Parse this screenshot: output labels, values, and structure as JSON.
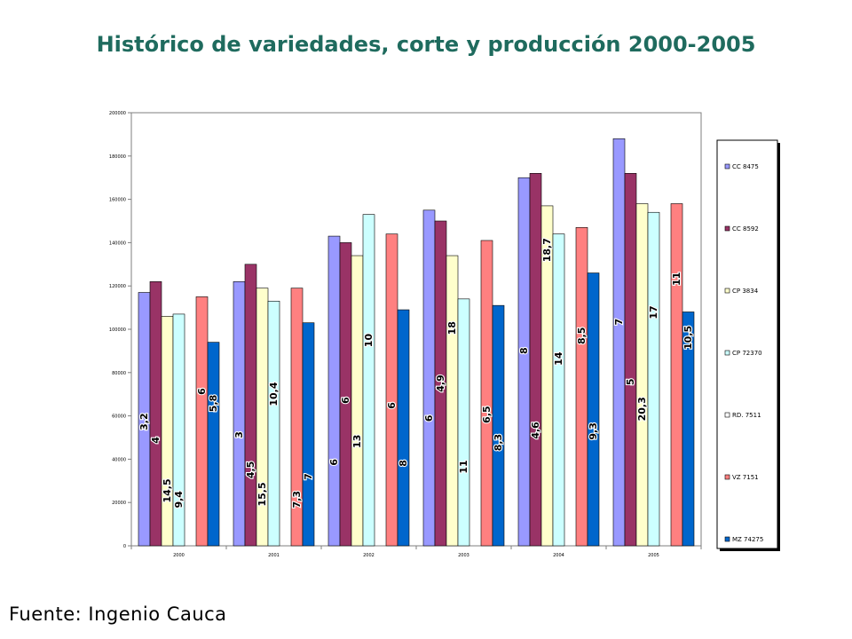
{
  "page": {
    "title": "Histórico de variedades, corte y producción 2000-2005",
    "source": "Fuente: Ingenio Cauca"
  },
  "chart_data": {
    "type": "bar",
    "title": "",
    "xlabel": "",
    "ylabel": "",
    "ylim": [
      0,
      200000
    ],
    "yticks": [
      0,
      20000,
      40000,
      60000,
      80000,
      100000,
      120000,
      140000,
      160000,
      180000,
      200000
    ],
    "ytick_labels": [
      "0",
      "20000",
      "40000",
      "60000",
      "80000",
      "100000",
      "120000",
      "140000",
      "160000",
      "180000",
      "200000"
    ],
    "grid": false,
    "legend_position": "right",
    "categories": [
      "2000",
      "2001",
      "2002",
      "2003",
      "2004",
      "2005"
    ],
    "series": [
      {
        "name": "CC 8475",
        "color": "#9999ff",
        "values": [
          117000,
          122000,
          143000,
          155000,
          170000,
          188000
        ],
        "labels": [
          "3,2",
          "3",
          "6",
          "6",
          "8",
          "7"
        ],
        "label_frac": [
          0.49,
          0.42,
          0.27,
          0.38,
          0.53,
          0.55
        ]
      },
      {
        "name": "CC 8592",
        "color": "#993366",
        "values": [
          122000,
          130000,
          140000,
          150000,
          172000,
          172000
        ],
        "labels": [
          "4",
          "4,5",
          "6",
          "4,9",
          "4,6",
          "5"
        ],
        "label_frac": [
          0.4,
          0.27,
          0.48,
          0.5,
          0.31,
          0.44
        ]
      },
      {
        "name": "CP 3834",
        "color": "#ffffcc",
        "values": [
          106000,
          119000,
          134000,
          134000,
          157000,
          158000
        ],
        "labels": [
          "14,5",
          "15,5",
          "13",
          "18",
          "18,7",
          "20,3"
        ],
        "label_frac": [
          0.24,
          0.2,
          0.36,
          0.75,
          0.87,
          0.4
        ]
      },
      {
        "name": "CP 72370",
        "color": "#ccffff",
        "values": [
          107000,
          113000,
          153000,
          114000,
          144000,
          154000
        ],
        "labels": [
          "9,4",
          "10,4",
          "10",
          "11",
          "14",
          "17"
        ],
        "label_frac": [
          0.2,
          0.62,
          0.62,
          0.32,
          0.6,
          0.7
        ]
      },
      {
        "name": "RD. 7511",
        "color": "#ffffff",
        "values": [
          0,
          0,
          0,
          0,
          0,
          0
        ],
        "labels": [],
        "label_frac": []
      },
      {
        "name": "VZ 7151",
        "color": "#ff8080",
        "values": [
          115000,
          119000,
          144000,
          141000,
          147000,
          158000
        ],
        "labels": [
          "6",
          "7,3",
          "6",
          "6,5",
          "8,5",
          "11"
        ],
        "label_frac": [
          0.62,
          0.18,
          0.45,
          0.43,
          0.66,
          0.78
        ]
      },
      {
        "name": "MZ 74275",
        "color": "#0066cc",
        "values": [
          94000,
          103000,
          109000,
          111000,
          126000,
          108000
        ],
        "labels": [
          "5,8",
          "7",
          "8",
          "8,3",
          "9,3",
          "10,5"
        ],
        "label_frac": [
          0.7,
          0.31,
          0.35,
          0.43,
          0.42,
          0.89
        ]
      }
    ]
  }
}
